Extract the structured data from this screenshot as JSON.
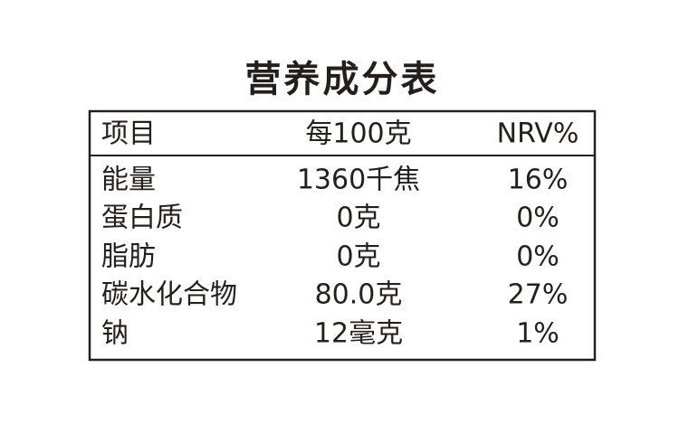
{
  "title": "营养成分表",
  "table": {
    "header": [
      "项目",
      "每100克",
      "NRV%"
    ],
    "rows": [
      [
        "能量",
        "1360千焦",
        "16%"
      ],
      [
        "蛋白质",
        "0克",
        "0%"
      ],
      [
        "脂肪",
        "0克",
        "0%"
      ],
      [
        "碳水化合物",
        "80.0克",
        "27%"
      ],
      [
        "钠",
        "12毫克",
        "1%"
      ]
    ]
  }
}
